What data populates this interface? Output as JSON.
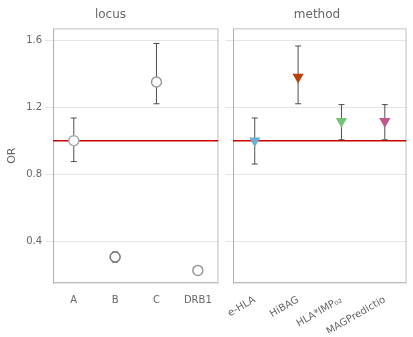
{
  "chart_data": [
    {
      "type": "scatter",
      "title": "locus",
      "y_label": "OR",
      "categories": [
        "A",
        "B",
        "C",
        "DRB1"
      ],
      "values": [
        1.0,
        0.305,
        1.35,
        0.225
      ],
      "error_low": [
        0.875,
        0.275,
        1.22,
        0.213
      ],
      "error_high": [
        1.135,
        0.335,
        1.58,
        0.238
      ],
      "colors": [
        "#aaaaaa",
        "#777777",
        "#999999",
        "#999999"
      ],
      "marker": "circle",
      "reference_line": {
        "value": 1.0,
        "color": "#cc0000"
      },
      "ylim": [
        0.15,
        1.67
      ],
      "yticks": [
        0.4,
        0.8,
        1.2,
        1.6
      ],
      "grid": "y"
    },
    {
      "type": "scatter",
      "title": "method",
      "categories": [
        "e-HLA",
        "HiBAG",
        "HLA*IMP₀₂",
        "MAGPredictio"
      ],
      "values": [
        1.0,
        1.38,
        1.115,
        1.115
      ],
      "error_low": [
        0.86,
        1.22,
        1.005,
        1.005
      ],
      "error_high": [
        1.135,
        1.565,
        1.215,
        1.215
      ],
      "colors": [
        "#6baed6",
        "#b5420a",
        "#74c476",
        "#c0578a"
      ],
      "marker": "triangle_down",
      "reference_line": {
        "value": 1.0,
        "color": "#cc0000"
      },
      "ylim": [
        0.15,
        1.67
      ],
      "yticks": [
        0.4,
        0.8,
        1.2,
        1.6
      ],
      "grid": "y",
      "tick_labels": "x"
    }
  ]
}
